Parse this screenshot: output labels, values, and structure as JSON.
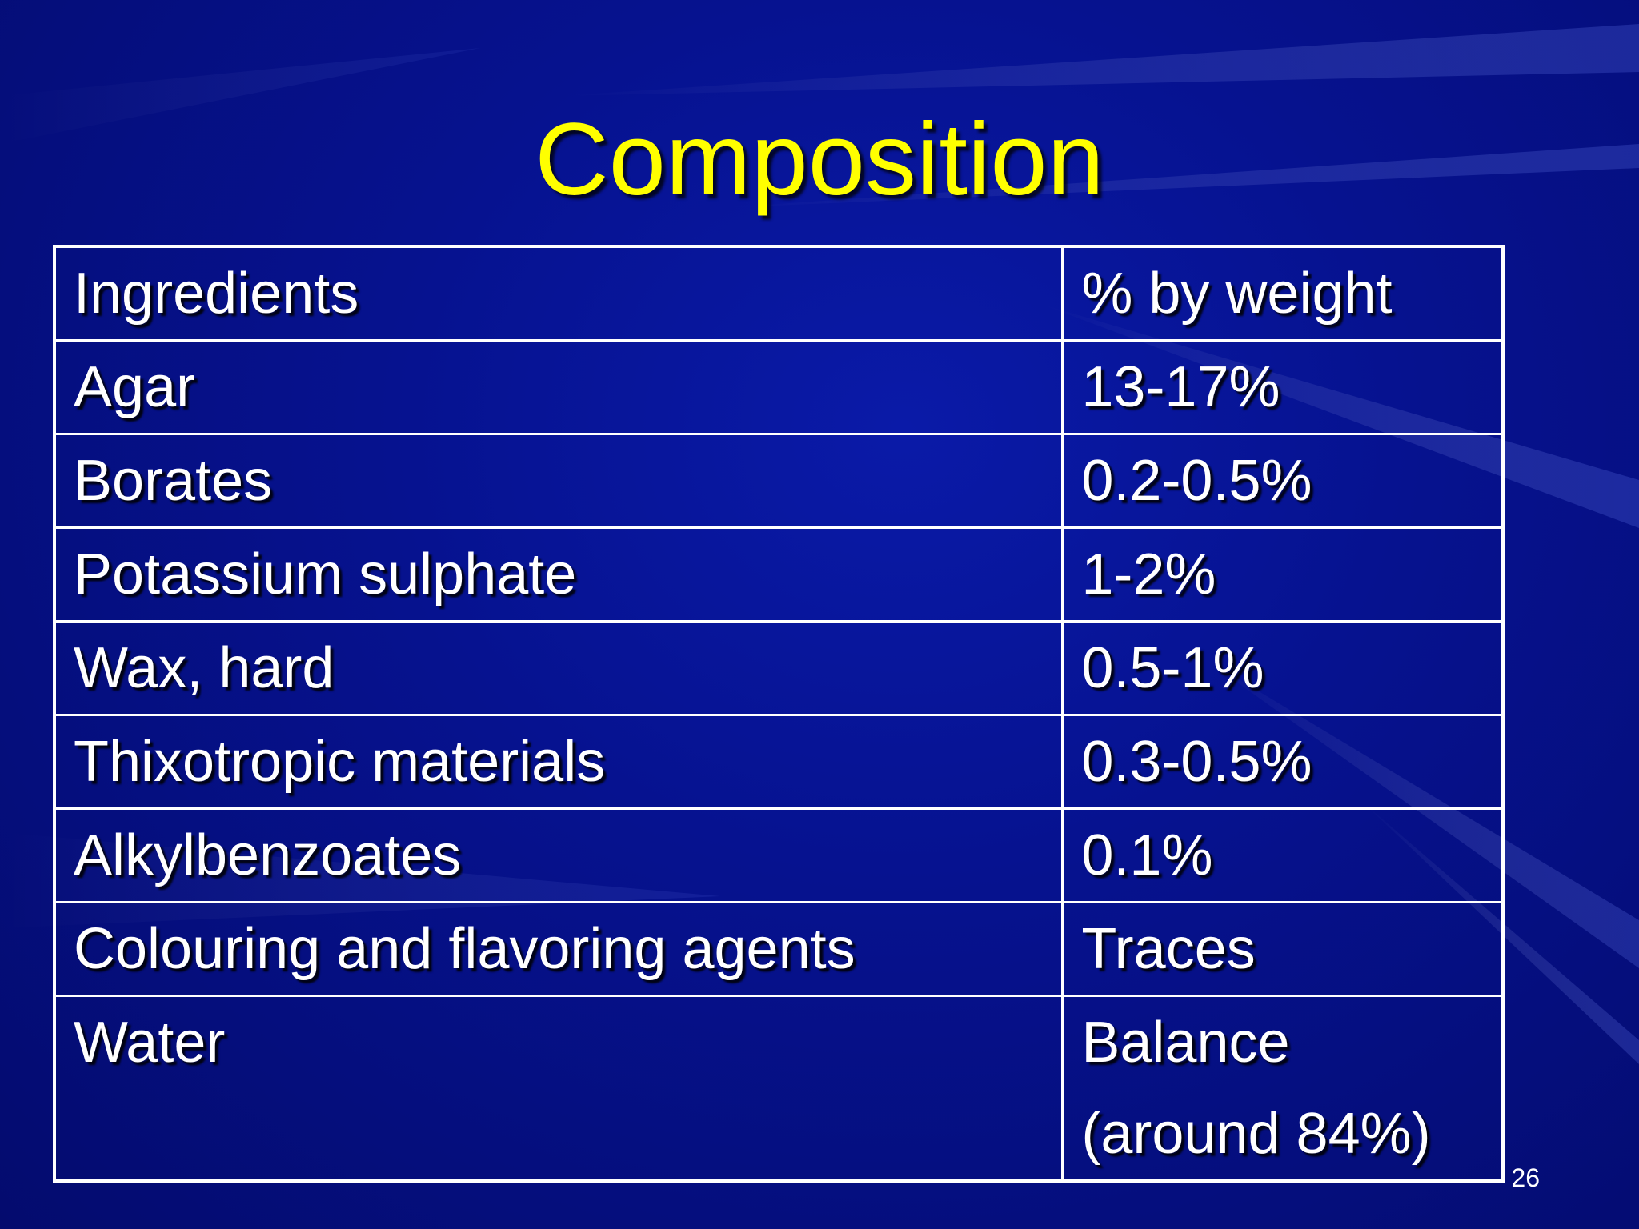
{
  "slide": {
    "title": "Composition",
    "page_number": "26"
  },
  "table": {
    "headers": [
      "Ingredients",
      "% by weight"
    ],
    "rows": [
      {
        "ingredient": "Agar",
        "percent": "13-17%"
      },
      {
        "ingredient": "Borates",
        "percent": "0.2-0.5%"
      },
      {
        "ingredient": "Potassium sulphate",
        "percent": "1-2%"
      },
      {
        "ingredient": "Wax, hard",
        "percent": "0.5-1%"
      },
      {
        "ingredient": "Thixotropic materials",
        "percent": "0.3-0.5%"
      },
      {
        "ingredient": "Alkylbenzoates",
        "percent": "0.1%"
      },
      {
        "ingredient": "Colouring and flavoring agents",
        "percent": "Traces"
      },
      {
        "ingredient": "Water",
        "percent": "Balance",
        "percent_line2": "(around 84%)"
      }
    ]
  },
  "colors": {
    "background": "#06128f",
    "title": "#ffff00",
    "text": "#ffffff",
    "grid": "#ffffff"
  }
}
